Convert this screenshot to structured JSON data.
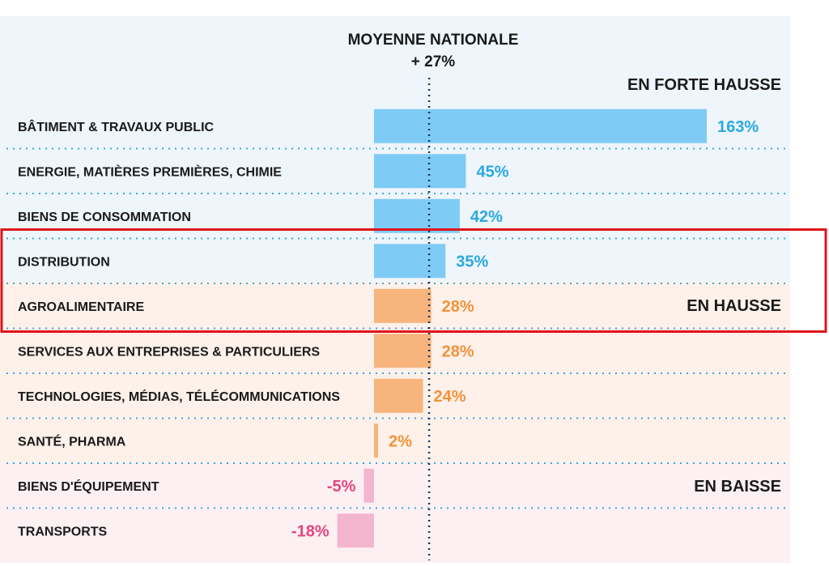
{
  "chart_data": {
    "type": "bar",
    "orientation": "horizontal",
    "reference": {
      "title": "MOYENNE NATIONALE",
      "value_label": "+ 27%",
      "value": 27
    },
    "groups": [
      {
        "label": "EN FORTE HAUSSE",
        "color": "#7ecbf5",
        "text_color": "#29a9e1",
        "band": "#eef5fb"
      },
      {
        "label": "EN HAUSSE",
        "color": "#f7b47c",
        "text_color": "#f29238",
        "band": "#fdf1ea"
      },
      {
        "label": "EN BAISSE",
        "color": "#f4b6cf",
        "text_color": "#e5457d",
        "band": "#fdf0f3"
      }
    ],
    "categories": [
      "BÂTIMENT & TRAVAUX PUBLIC",
      "ENERGIE, MATIÈRES PREMIÈRES, CHIMIE",
      "BIENS DE CONSOMMATION",
      "DISTRIBUTION",
      "AGROALIMENTAIRE",
      "SERVICES AUX  ENTREPRISES & PARTICULIERS",
      "TECHNOLOGIES, MÉDIAS, TÉLÉCOMMUNICATIONS",
      "SANTÉ, PHARMA",
      "BIENS D'ÉQUIPEMENT",
      "TRANSPORTS"
    ],
    "values": [
      163,
      45,
      42,
      35,
      28,
      28,
      24,
      2,
      -5,
      -18
    ],
    "value_labels": [
      "163%",
      "45%",
      "42%",
      "35%",
      "28%",
      "28%",
      "24%",
      "2%",
      "-5%",
      "-18%"
    ],
    "group_index": [
      0,
      0,
      0,
      0,
      1,
      1,
      1,
      1,
      2,
      2
    ],
    "highlight_categories": [
      "DISTRIBUTION",
      "AGROALIMENTAIRE"
    ],
    "highlight_color": "#e0161b",
    "divider_color": "#3aa7d8"
  }
}
